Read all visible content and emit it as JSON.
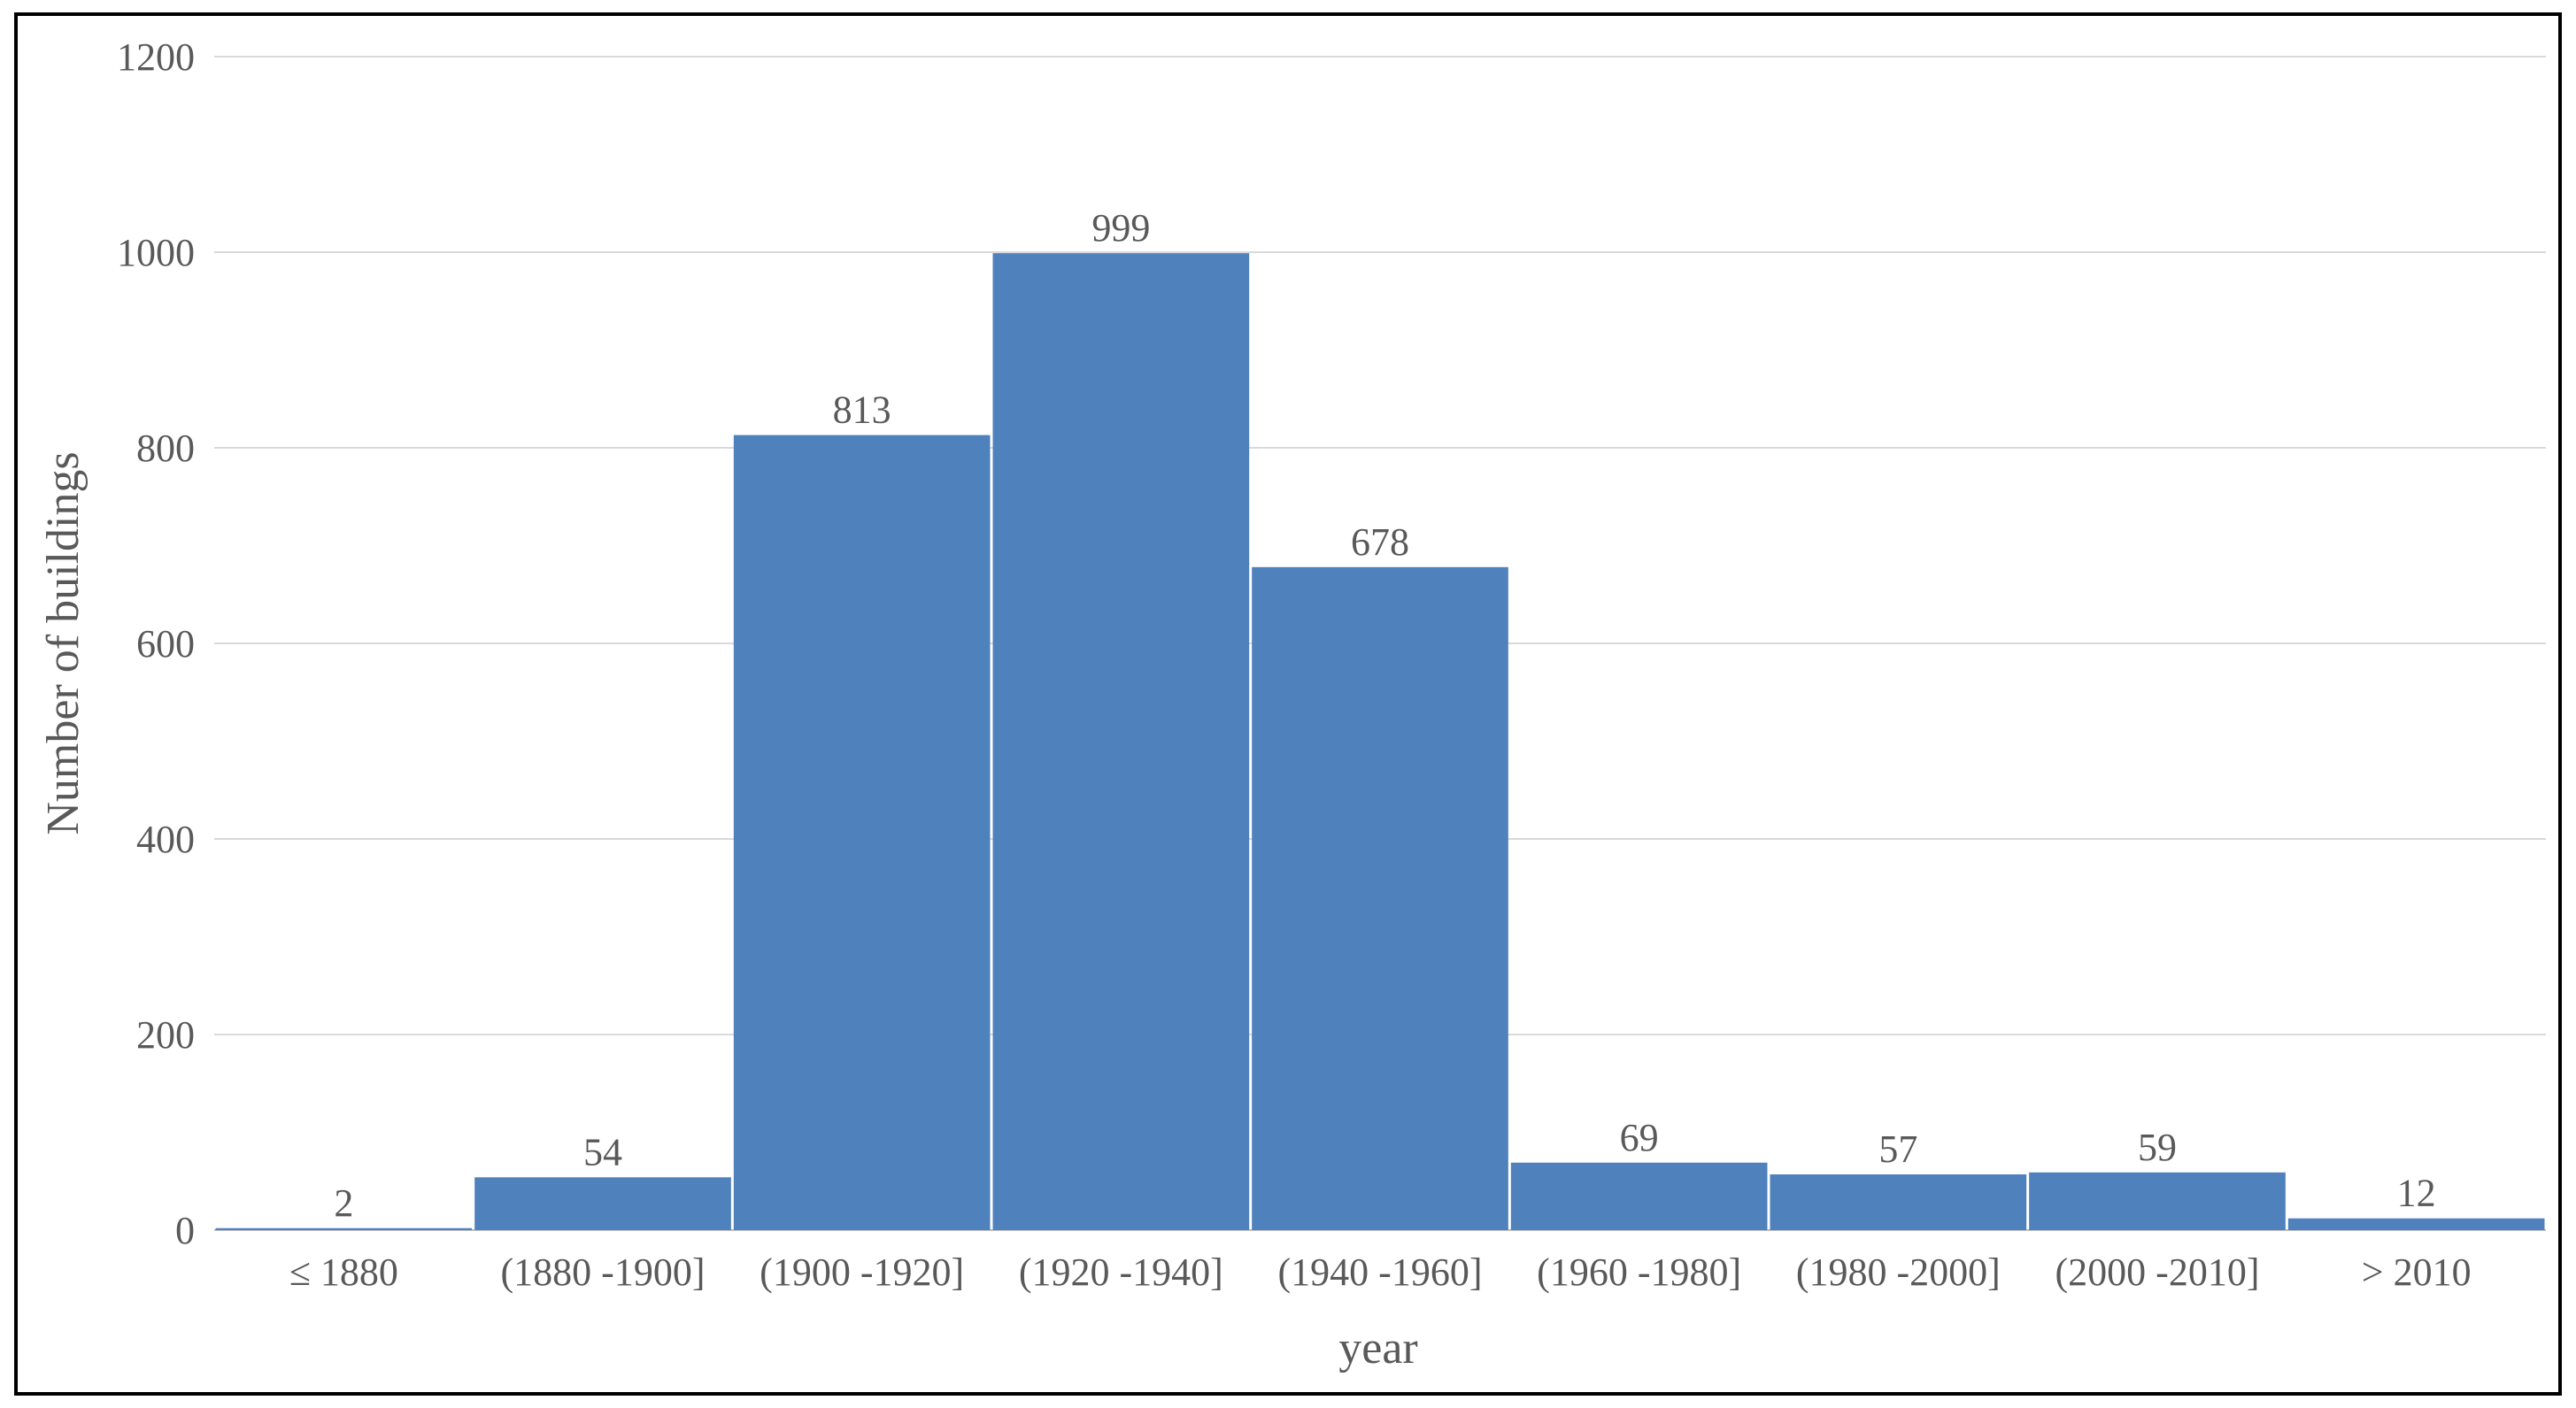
{
  "chart_data": {
    "type": "bar",
    "title": "",
    "xlabel": "year",
    "ylabel": "Number of buildings",
    "categories": [
      "≤ 1880",
      "(1880 -1900]",
      "(1900 -1920]",
      "(1920 -1940]",
      "(1940 -1960]",
      "(1960 -1980]",
      "(1980 -2000]",
      "(2000 -2010]",
      "> 2010"
    ],
    "values": [
      2,
      54,
      813,
      999,
      678,
      69,
      57,
      59,
      12
    ],
    "data_labels": [
      "2",
      "54",
      "813",
      "999",
      "678",
      "69",
      "57",
      "59",
      "12"
    ],
    "ylim": [
      0,
      1200
    ],
    "yticks": [
      0,
      200,
      400,
      600,
      800,
      1000,
      1200
    ],
    "ytick_labels": [
      "0",
      "200",
      "400",
      "600",
      "800",
      "1000",
      "1200"
    ],
    "grid": true,
    "legend": "none",
    "bar_color": "#4F81BD",
    "grid_color": "#D9D9D9",
    "text_color": "#595959"
  }
}
